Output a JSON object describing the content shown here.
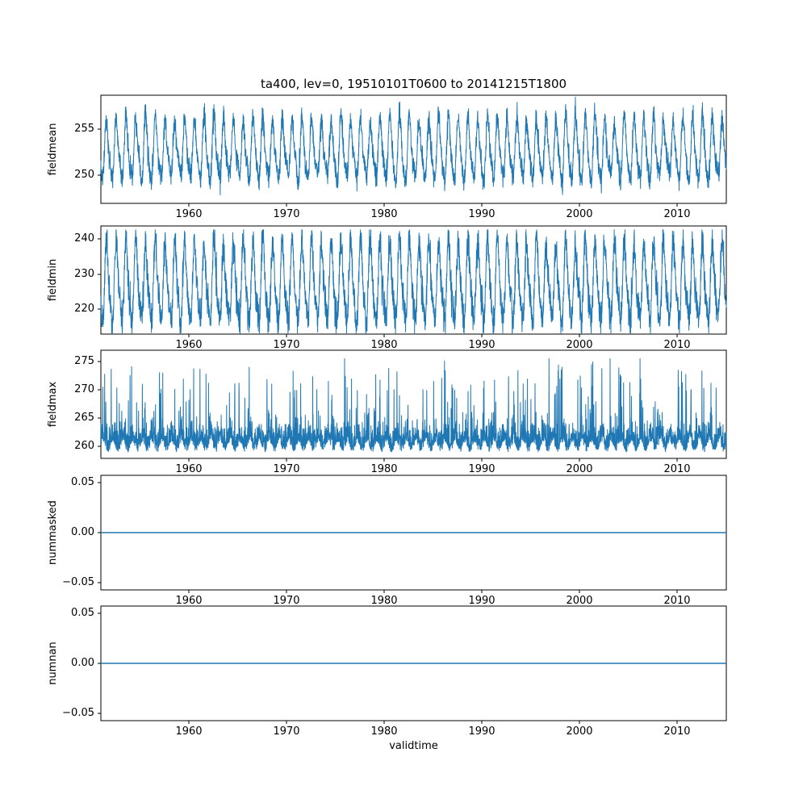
{
  "figure": {
    "title": "ta400, lev=0, 19510101T0600 to 20141215T1800",
    "xlabel": "validtime",
    "line_color": "#1f77b4",
    "axes_color": "#000000",
    "background_color": "#ffffff"
  },
  "chart_data": [
    {
      "type": "line",
      "ylabel": "fieldmean",
      "legend": "none",
      "grid": false,
      "x": {
        "range": [
          1951.0,
          2015.0
        ],
        "ticks": [
          1960,
          1970,
          1980,
          1990,
          2000,
          2010
        ],
        "tick_labels": [
          "1960",
          "1970",
          "1980",
          "1990",
          "2000",
          "2010"
        ]
      },
      "y": {
        "range": [
          247.0,
          258.6
        ],
        "ticks": [
          250,
          255
        ],
        "tick_labels": [
          "250",
          "255"
        ]
      },
      "series": {
        "name": "fieldmean",
        "pattern": "annual_cycle",
        "mean": 252.6,
        "annual_amplitude": 3.0,
        "amplitude_jitter": 0.18,
        "noise_sd": 0.6,
        "min": 247.9,
        "max": 258.4
      }
    },
    {
      "type": "line",
      "ylabel": "fieldmin",
      "legend": "none",
      "grid": false,
      "x": {
        "range": [
          1951.0,
          2015.0
        ],
        "ticks": [
          1960,
          1970,
          1980,
          1990,
          2000,
          2010
        ],
        "tick_labels": [
          "1960",
          "1970",
          "1980",
          "1990",
          "2000",
          "2010"
        ]
      },
      "y": {
        "range": [
          212.9,
          243.7
        ],
        "ticks": [
          220,
          230,
          240
        ],
        "tick_labels": [
          "220",
          "230",
          "240"
        ]
      },
      "series": {
        "name": "fieldmin",
        "pattern": "annual_cycle",
        "mean": 227.0,
        "annual_amplitude": 10.5,
        "amplitude_jitter": 0.12,
        "noise_sd": 2.4,
        "min": 213.2,
        "max": 242.6
      }
    },
    {
      "type": "line",
      "ylabel": "fieldmax",
      "legend": "none",
      "grid": false,
      "x": {
        "range": [
          1951.0,
          2015.0
        ],
        "ticks": [
          1960,
          1970,
          1980,
          1990,
          2000,
          2010
        ],
        "tick_labels": [
          "1960",
          "1970",
          "1980",
          "1990",
          "2000",
          "2010"
        ]
      },
      "y": {
        "range": [
          257.9,
          277.0
        ],
        "ticks": [
          260,
          265,
          270,
          275
        ],
        "tick_labels": [
          "260",
          "265",
          "270",
          "275"
        ]
      },
      "series": {
        "name": "fieldmax",
        "pattern": "noisy_spikes",
        "base": 259.9,
        "noise_sd": 1.7,
        "annual_amplitude": 0.9,
        "spike_prob": 0.1,
        "spike_min": 1.5,
        "spike_max": 13.5,
        "min": 258.7,
        "max": 275.5
      }
    },
    {
      "type": "line",
      "ylabel": "nummasked",
      "legend": "none",
      "grid": false,
      "x": {
        "range": [
          1951.0,
          2015.0
        ],
        "ticks": [
          1960,
          1970,
          1980,
          1990,
          2000,
          2010
        ],
        "tick_labels": [
          "1960",
          "1970",
          "1980",
          "1990",
          "2000",
          "2010"
        ]
      },
      "y": {
        "range": [
          -0.057,
          0.057
        ],
        "ticks": [
          -0.05,
          0.0,
          0.05
        ],
        "tick_labels": [
          "−0.05",
          "0.00",
          "0.05"
        ]
      },
      "series": {
        "name": "nummasked",
        "pattern": "constant",
        "value": 0.0
      }
    },
    {
      "type": "line",
      "ylabel": "numnan",
      "legend": "none",
      "grid": false,
      "x": {
        "range": [
          1951.0,
          2015.0
        ],
        "ticks": [
          1960,
          1970,
          1980,
          1990,
          2000,
          2010
        ],
        "tick_labels": [
          "1960",
          "1970",
          "1980",
          "1990",
          "2000",
          "2010"
        ]
      },
      "y": {
        "range": [
          -0.057,
          0.057
        ],
        "ticks": [
          -0.05,
          0.0,
          0.05
        ],
        "tick_labels": [
          "−0.05",
          "0.00",
          "0.05"
        ]
      },
      "series": {
        "name": "numnan",
        "pattern": "constant",
        "value": 0.0
      }
    }
  ]
}
